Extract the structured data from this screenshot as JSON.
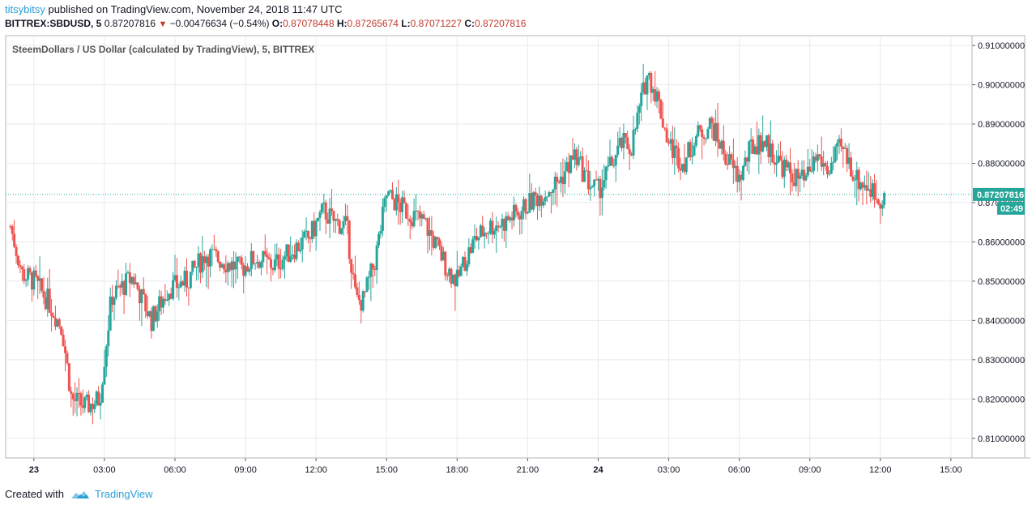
{
  "header": {
    "author": "titsybitsy",
    "published_text": "published on TradingView.com, November 24, 2018 11:47 UTC"
  },
  "symbol_line": {
    "symbol": "BITTREX:SBDUSD, 5",
    "last": "0.87207816",
    "change": "−0.00476634 (−0.54%)",
    "o_label": "O:",
    "o_value": "0.87078448",
    "h_label": "H:",
    "h_value": "0.87265674",
    "l_label": "L:",
    "l_value": "0.87071227",
    "c_label": "C:",
    "c_value": "0.87207816"
  },
  "footer": {
    "created_with": "Created with",
    "brand": "TradingView"
  },
  "colors": {
    "up": "#26a69a",
    "down": "#ef5350",
    "grid": "#e7eaf0",
    "price_line": "#26a69a"
  },
  "chart_data": {
    "type": "candlestick",
    "title": "SteemDollars / US Dollar (calculated by TradingView), 5, BITTREX",
    "ylim": [
      0.805,
      0.9125
    ],
    "y_ticks": [
      "0.91000000",
      "0.90000000",
      "0.89000000",
      "0.88000000",
      "0.87000000",
      "0.86000000",
      "0.85000000",
      "0.84000000",
      "0.83000000",
      "0.82000000",
      "0.81000000"
    ],
    "y_tick_values": [
      0.91,
      0.9,
      0.89,
      0.88,
      0.87,
      0.86,
      0.85,
      0.84,
      0.83,
      0.82,
      0.81
    ],
    "x_ticks": [
      "23",
      "03:00",
      "06:00",
      "09:00",
      "12:00",
      "15:00",
      "18:00",
      "21:00",
      "24",
      "03:00",
      "06:00",
      "09:00",
      "12:00",
      "15:00"
    ],
    "x_tick_hours": [
      0,
      3,
      6,
      9,
      12,
      15,
      18,
      21,
      24,
      27,
      30,
      33,
      36,
      39
    ],
    "x_range_hours": [
      -1.2,
      39.9
    ],
    "last_price_label": "0.87207816",
    "last_price_value": 0.87207816,
    "countdown_label": "02:49",
    "path_hours": [
      -1.0,
      -0.5,
      0.0,
      0.6,
      1.2,
      1.6,
      2.2,
      2.8,
      3.3,
      4.2,
      5.0,
      5.7,
      6.5,
      7.3,
      8.1,
      8.8,
      9.4,
      10.2,
      11.0,
      11.7,
      12.3,
      12.8,
      13.3,
      13.7,
      14.0,
      14.5,
      15.0,
      15.8,
      16.6,
      17.2,
      17.6,
      18.0,
      18.3,
      18.8,
      19.4,
      20.0,
      20.7,
      21.3,
      21.8,
      22.4,
      23.0,
      23.6,
      24.0,
      24.5,
      25.0,
      25.4,
      25.8,
      26.1,
      26.5,
      27.0,
      27.6,
      28.2,
      28.8,
      29.4,
      30.0,
      30.5,
      31.0,
      31.6,
      32.2,
      32.8,
      33.3,
      33.8,
      34.3,
      34.6,
      35.0,
      35.5,
      35.9,
      36.2
    ],
    "path_values": [
      0.864,
      0.852,
      0.85,
      0.845,
      0.838,
      0.82,
      0.818,
      0.82,
      0.846,
      0.851,
      0.84,
      0.848,
      0.85,
      0.857,
      0.855,
      0.853,
      0.856,
      0.854,
      0.858,
      0.861,
      0.868,
      0.865,
      0.864,
      0.845,
      0.845,
      0.855,
      0.872,
      0.868,
      0.865,
      0.858,
      0.853,
      0.85,
      0.855,
      0.861,
      0.864,
      0.865,
      0.868,
      0.871,
      0.873,
      0.876,
      0.882,
      0.875,
      0.873,
      0.879,
      0.885,
      0.884,
      0.895,
      0.903,
      0.897,
      0.885,
      0.88,
      0.887,
      0.89,
      0.882,
      0.876,
      0.884,
      0.886,
      0.881,
      0.877,
      0.875,
      0.882,
      0.878,
      0.884,
      0.881,
      0.876,
      0.874,
      0.871,
      0.8721
    ]
  }
}
